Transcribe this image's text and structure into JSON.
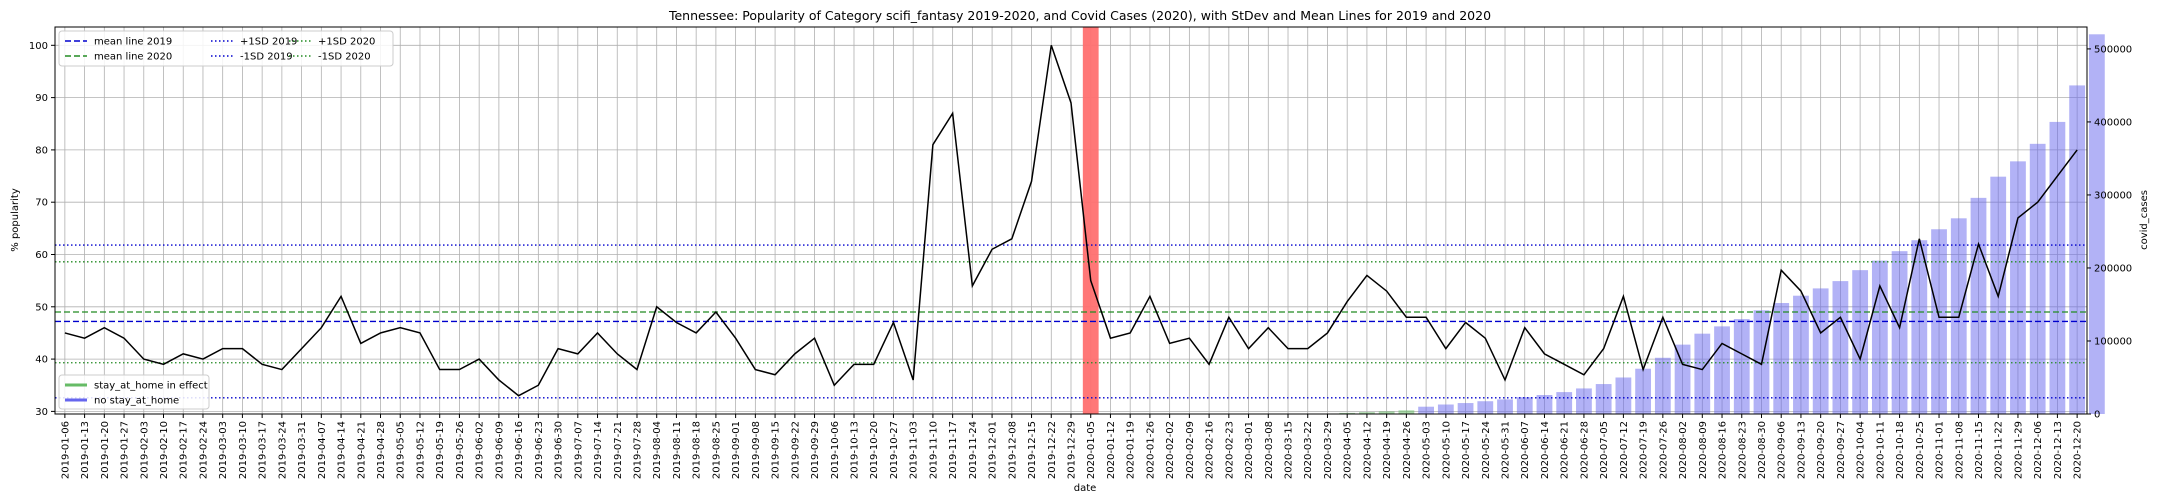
{
  "chart_data": {
    "type": "line",
    "title": "Tennessee: Popularity of Category scifi_fantasy 2019-2020, and Covid Cases (2020), with StDev and Mean Lines for 2019 and 2020",
    "xlabel": "date",
    "ylabel": "% popularity",
    "y2label": "covid_cases",
    "ylim": [
      29.5,
      103.5
    ],
    "y2lim": [
      0,
      530000
    ],
    "yticks": [
      30,
      40,
      50,
      60,
      70,
      80,
      90,
      100
    ],
    "y2ticks": [
      0,
      100000,
      200000,
      300000,
      400000,
      500000
    ],
    "grid": true,
    "x": [
      "2019-01-06",
      "2019-01-13",
      "2019-01-20",
      "2019-01-27",
      "2019-02-03",
      "2019-02-10",
      "2019-02-17",
      "2019-02-24",
      "2019-03-03",
      "2019-03-10",
      "2019-03-17",
      "2019-03-24",
      "2019-03-31",
      "2019-04-07",
      "2019-04-14",
      "2019-04-21",
      "2019-04-28",
      "2019-05-05",
      "2019-05-12",
      "2019-05-19",
      "2019-05-26",
      "2019-06-02",
      "2019-06-09",
      "2019-06-16",
      "2019-06-23",
      "2019-06-30",
      "2019-07-07",
      "2019-07-14",
      "2019-07-21",
      "2019-07-28",
      "2019-08-04",
      "2019-08-11",
      "2019-08-18",
      "2019-08-25",
      "2019-09-01",
      "2019-09-08",
      "2019-09-15",
      "2019-09-22",
      "2019-09-29",
      "2019-10-06",
      "2019-10-13",
      "2019-10-20",
      "2019-10-27",
      "2019-11-03",
      "2019-11-10",
      "2019-11-17",
      "2019-11-24",
      "2019-12-01",
      "2019-12-08",
      "2019-12-15",
      "2019-12-22",
      "2019-12-29",
      "2020-01-05",
      "2020-01-12",
      "2020-01-19",
      "2020-01-26",
      "2020-02-02",
      "2020-02-09",
      "2020-02-16",
      "2020-02-23",
      "2020-03-01",
      "2020-03-08",
      "2020-03-15",
      "2020-03-22",
      "2020-03-29",
      "2020-04-05",
      "2020-04-12",
      "2020-04-19",
      "2020-04-26",
      "2020-05-03",
      "2020-05-10",
      "2020-05-17",
      "2020-05-24",
      "2020-05-31",
      "2020-06-07",
      "2020-06-14",
      "2020-06-21",
      "2020-06-28",
      "2020-07-05",
      "2020-07-12",
      "2020-07-19",
      "2020-07-26",
      "2020-08-02",
      "2020-08-09",
      "2020-08-16",
      "2020-08-23",
      "2020-08-30",
      "2020-09-06",
      "2020-09-13",
      "2020-09-20",
      "2020-09-27",
      "2020-10-04",
      "2020-10-11",
      "2020-10-18",
      "2020-10-25",
      "2020-11-01",
      "2020-11-08",
      "2020-11-15",
      "2020-11-22",
      "2020-11-29",
      "2020-12-06",
      "2020-12-13",
      "2020-12-20"
    ],
    "popularity": {
      "name": "",
      "color": "#000000",
      "values": [
        45,
        44,
        46,
        44,
        40,
        39,
        41,
        40,
        42,
        42,
        39,
        38,
        42,
        46,
        52,
        43,
        45,
        46,
        45,
        38,
        38,
        40,
        36,
        33,
        35,
        42,
        41,
        45,
        41,
        38,
        50,
        47,
        45,
        49,
        44,
        38,
        37,
        41,
        44,
        35,
        39,
        39,
        47,
        36,
        81,
        87,
        54,
        61,
        63,
        74,
        100,
        89,
        55,
        44,
        45,
        52,
        43,
        44,
        39,
        48,
        42,
        46,
        42,
        42,
        45,
        51,
        56,
        53,
        48,
        48,
        42,
        47,
        44,
        36,
        46,
        41,
        39,
        37,
        42,
        52,
        38,
        48,
        39,
        38,
        43,
        41,
        39,
        57,
        53,
        45,
        48,
        40,
        54,
        46,
        63,
        48,
        48,
        62,
        52,
        67,
        70,
        75,
        80
      ]
    },
    "covid_cases": {
      "name": "covid_cases",
      "color": "#0000ff",
      "start_index": 64,
      "values": [
        400,
        1500,
        2500,
        3500,
        5000,
        10000,
        13000,
        15000,
        17500,
        20000,
        23000,
        26000,
        30000,
        35000,
        41000,
        50000,
        62000,
        77000,
        95000,
        110000,
        120000,
        130000,
        142000,
        152000,
        162000,
        172000,
        182000,
        197000,
        210000,
        223000,
        238000,
        253000,
        268000,
        296000,
        325000,
        346000,
        370000,
        400000,
        450000,
        520000
      ]
    },
    "stay_at_home_index": [
      64,
      65,
      66,
      67,
      68
    ],
    "highlight_index": 52,
    "hlines": [
      {
        "name": "mean line 2019",
        "y": 47.2,
        "color": "#0000cd",
        "style": "dashed"
      },
      {
        "name": "mean line 2020",
        "y": 49.0,
        "color": "#228b22",
        "style": "dashed"
      },
      {
        "name": "+1SD 2019",
        "y": 61.8,
        "color": "#0000cd",
        "style": "dotted"
      },
      {
        "name": "-1SD 2019",
        "y": 32.6,
        "color": "#0000cd",
        "style": "dotted"
      },
      {
        "name": "+1SD 2020",
        "y": 58.6,
        "color": "#228b22",
        "style": "dotted"
      },
      {
        "name": "-1SD 2020",
        "y": 39.3,
        "color": "#228b22",
        "style": "dotted"
      }
    ],
    "legend_top": {
      "placement": "top-left",
      "columns": [
        [
          {
            "label": "mean line 2019",
            "color": "#0000cd",
            "style": "dashed"
          },
          {
            "label": "mean line 2020",
            "color": "#228b22",
            "style": "dashed"
          }
        ],
        [
          {
            "label": "+1SD 2019",
            "color": "#0000cd",
            "style": "dotted"
          },
          {
            "label": "-1SD 2019",
            "color": "#0000cd",
            "style": "dotted"
          }
        ],
        [
          {
            "label": "+1SD 2020",
            "color": "#228b22",
            "style": "dotted"
          },
          {
            "label": "-1SD 2020",
            "color": "#228b22",
            "style": "dotted"
          }
        ]
      ]
    },
    "legend_bottom": {
      "placement": "bottom-left",
      "entries": [
        {
          "label": "stay_at_home in effect",
          "color": "#66bb66"
        },
        {
          "label": "no stay_at_home",
          "color": "#6666ee"
        }
      ]
    }
  }
}
